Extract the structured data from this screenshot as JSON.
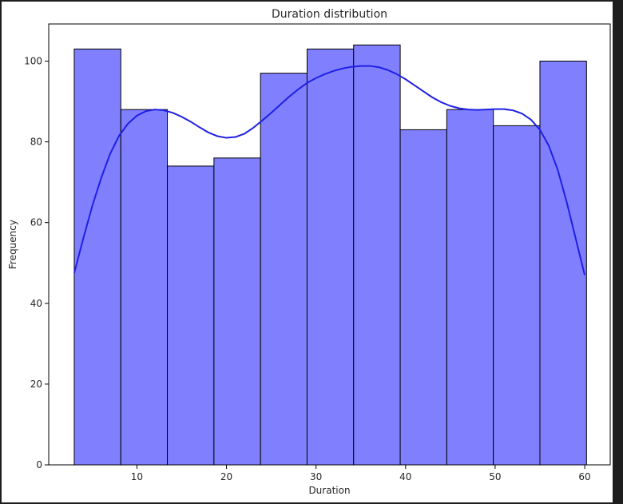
{
  "chart_data": {
    "type": "bar",
    "title": "Duration distribution",
    "xlabel": "Duration",
    "ylabel": "Frequency",
    "xlim": [
      0.15,
      62.85
    ],
    "ylim": [
      0,
      109.2
    ],
    "xticks": [
      10,
      20,
      30,
      40,
      50,
      60
    ],
    "yticks": [
      0,
      20,
      40,
      60,
      80,
      100
    ],
    "grid": false,
    "bins": [
      {
        "x0": 3.0,
        "x1": 8.2,
        "count": 103
      },
      {
        "x0": 8.2,
        "x1": 13.4,
        "count": 88
      },
      {
        "x0": 13.4,
        "x1": 18.6,
        "count": 74
      },
      {
        "x0": 18.6,
        "x1": 23.8,
        "count": 76
      },
      {
        "x0": 23.8,
        "x1": 29.0,
        "count": 97
      },
      {
        "x0": 29.0,
        "x1": 34.2,
        "count": 103
      },
      {
        "x0": 34.2,
        "x1": 39.4,
        "count": 104
      },
      {
        "x0": 39.4,
        "x1": 44.6,
        "count": 83
      },
      {
        "x0": 44.6,
        "x1": 49.8,
        "count": 88
      },
      {
        "x0": 49.8,
        "x1": 55.0,
        "count": 84
      },
      {
        "x0": 55.0,
        "x1": 60.2,
        "count": 100
      }
    ],
    "kde": {
      "x": [
        3,
        4,
        5,
        6,
        7,
        8,
        9,
        10,
        11,
        12,
        13,
        14,
        15,
        16,
        17,
        18,
        19,
        20,
        21,
        22,
        23,
        24,
        25,
        26,
        27,
        28,
        29,
        30,
        31,
        32,
        33,
        34,
        35,
        36,
        37,
        38,
        39,
        40,
        41,
        42,
        43,
        44,
        45,
        46,
        47,
        48,
        49,
        50,
        51,
        52,
        53,
        54,
        55,
        56,
        57,
        58,
        59,
        60
      ],
      "y": [
        47.5,
        56,
        64,
        71,
        77,
        81.5,
        84.5,
        86.5,
        87.6,
        88,
        87.8,
        87.2,
        86.2,
        85,
        83.6,
        82.3,
        81.4,
        81,
        81.2,
        82,
        83.5,
        85.3,
        87.2,
        89.2,
        91.2,
        93,
        94.6,
        95.8,
        96.8,
        97.6,
        98.2,
        98.6,
        98.8,
        98.8,
        98.5,
        97.8,
        96.8,
        95.5,
        94,
        92.5,
        91,
        89.8,
        88.9,
        88.3,
        88,
        87.9,
        88,
        88.1,
        88.1,
        87.8,
        87,
        85.5,
        83,
        79,
        73,
        65,
        56,
        47
      ]
    },
    "colors": {
      "bar_fill": "#8080ff",
      "bar_edge": "#000000",
      "kde_line": "#1f1fe6"
    }
  }
}
